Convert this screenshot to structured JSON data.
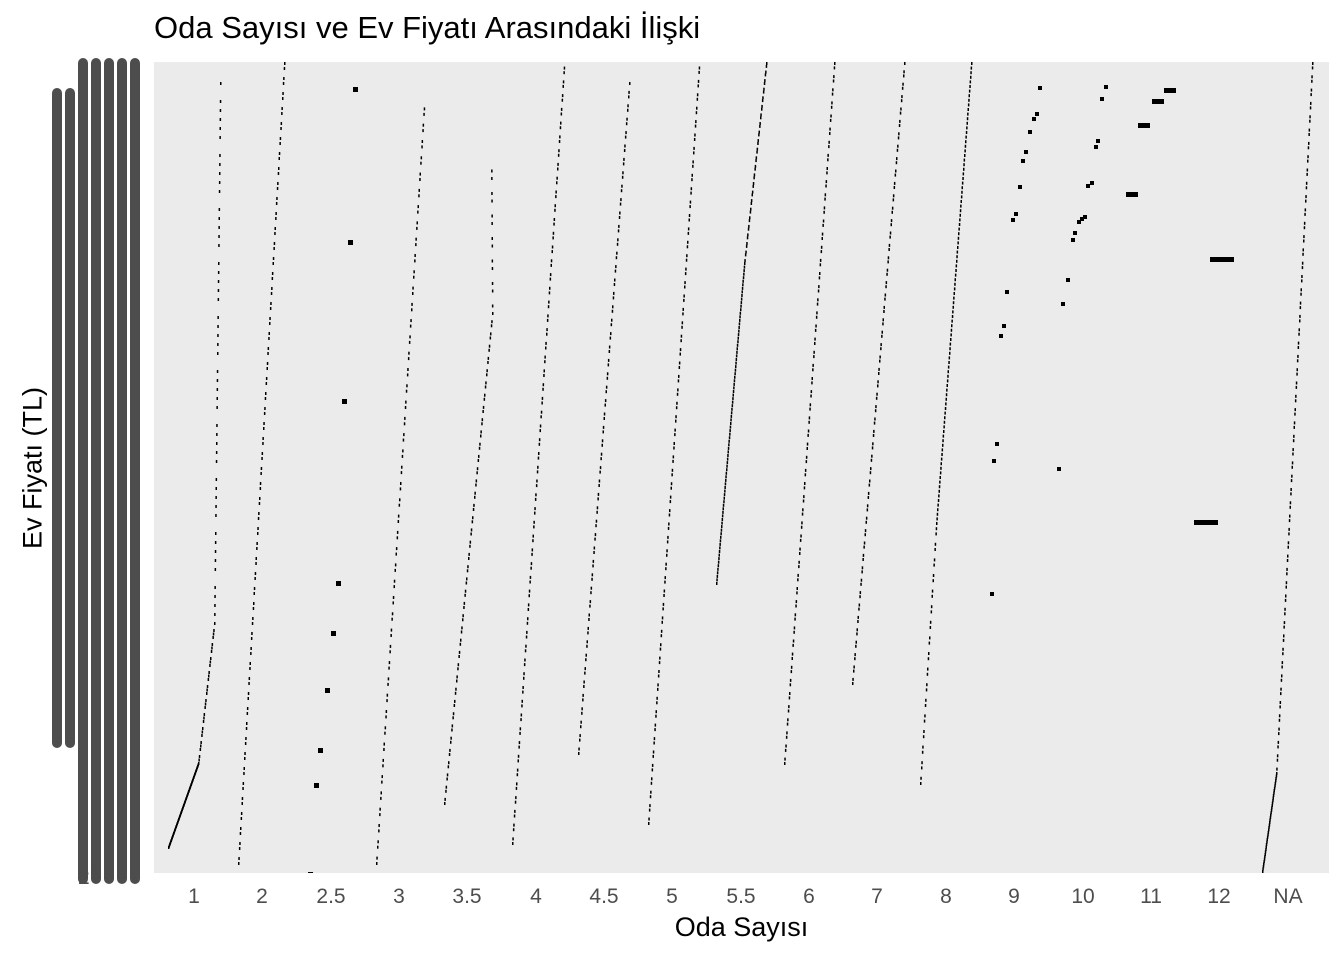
{
  "chart_data": {
    "type": "scatter",
    "title": "Oda Sayısı ve Ev Fiyatı Arasındaki İlişki",
    "xlabel": "Oda Sayısı",
    "ylabel": "Ev Fiyatı (TL)",
    "x_scale": "categorical",
    "categories": [
      "1",
      "2",
      "2.5",
      "3",
      "3.5",
      "4",
      "4.5",
      "5",
      "5.5",
      "6",
      "7",
      "8",
      "9",
      "10",
      "11",
      "12",
      "NA"
    ],
    "y_tick_labels_overlapping": true,
    "y_tick_labels_legible": [
      "2"
    ],
    "grid": false,
    "legend": "none",
    "colors": {
      "panel": "#ebebeb",
      "points": "#000000",
      "tick_text": "#4d4d4d",
      "y_tick_mass": "#4d4d4d"
    }
  }
}
